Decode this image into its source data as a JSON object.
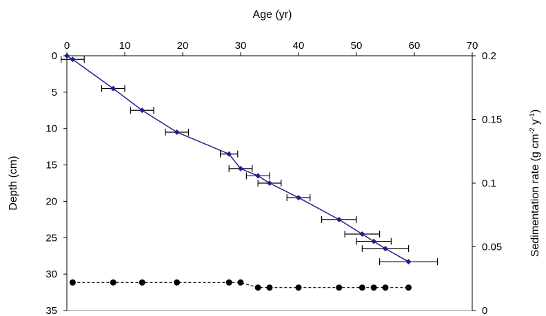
{
  "chart_data": {
    "type": "scatter",
    "title": "",
    "top_axis": {
      "label": "Age (yr)",
      "range": [
        0,
        70
      ],
      "ticks": [
        0,
        10,
        20,
        30,
        40,
        50,
        60,
        70
      ]
    },
    "left_axis": {
      "label": "Depth (cm)",
      "range": [
        0,
        35
      ],
      "reversed": true,
      "ticks": [
        0,
        5,
        10,
        15,
        20,
        25,
        30,
        35
      ]
    },
    "right_axis": {
      "label_main": "Sedimentation rate (g cm",
      "label_exp1": "-2",
      "label_mid": " y",
      "label_exp2": "-1",
      "label_end": ")",
      "range": [
        0,
        0.2
      ],
      "ticks": [
        "0",
        "0.05",
        "0.1",
        "0.15",
        "0.2"
      ]
    },
    "grid": false,
    "series": [
      {
        "axis": "depth",
        "marker": "diamond",
        "line": "solid",
        "color": "#1f1f8f",
        "x": [
          0,
          1,
          8,
          13,
          19,
          28,
          30,
          33,
          35,
          40,
          47,
          51,
          53,
          55,
          59
        ],
        "y": [
          0,
          0.5,
          4.5,
          7.5,
          10.5,
          13.5,
          15.5,
          16.5,
          17.5,
          19.5,
          22.5,
          24.5,
          25.5,
          26.5,
          28.3
        ],
        "err_x": [
          0,
          2,
          2,
          2,
          2,
          1.5,
          2,
          2,
          2,
          2,
          3,
          3,
          3,
          4,
          5
        ]
      },
      {
        "axis": "sedimentation_rate",
        "marker": "circle",
        "line": "dashed",
        "color": "#000000",
        "x": [
          1,
          8,
          13,
          19,
          28,
          30,
          33,
          35,
          40,
          47,
          51,
          53,
          55,
          59
        ],
        "y": [
          0.022,
          0.022,
          0.022,
          0.022,
          0.022,
          0.022,
          0.018,
          0.018,
          0.018,
          0.018,
          0.018,
          0.018,
          0.018,
          0.018
        ]
      }
    ]
  }
}
